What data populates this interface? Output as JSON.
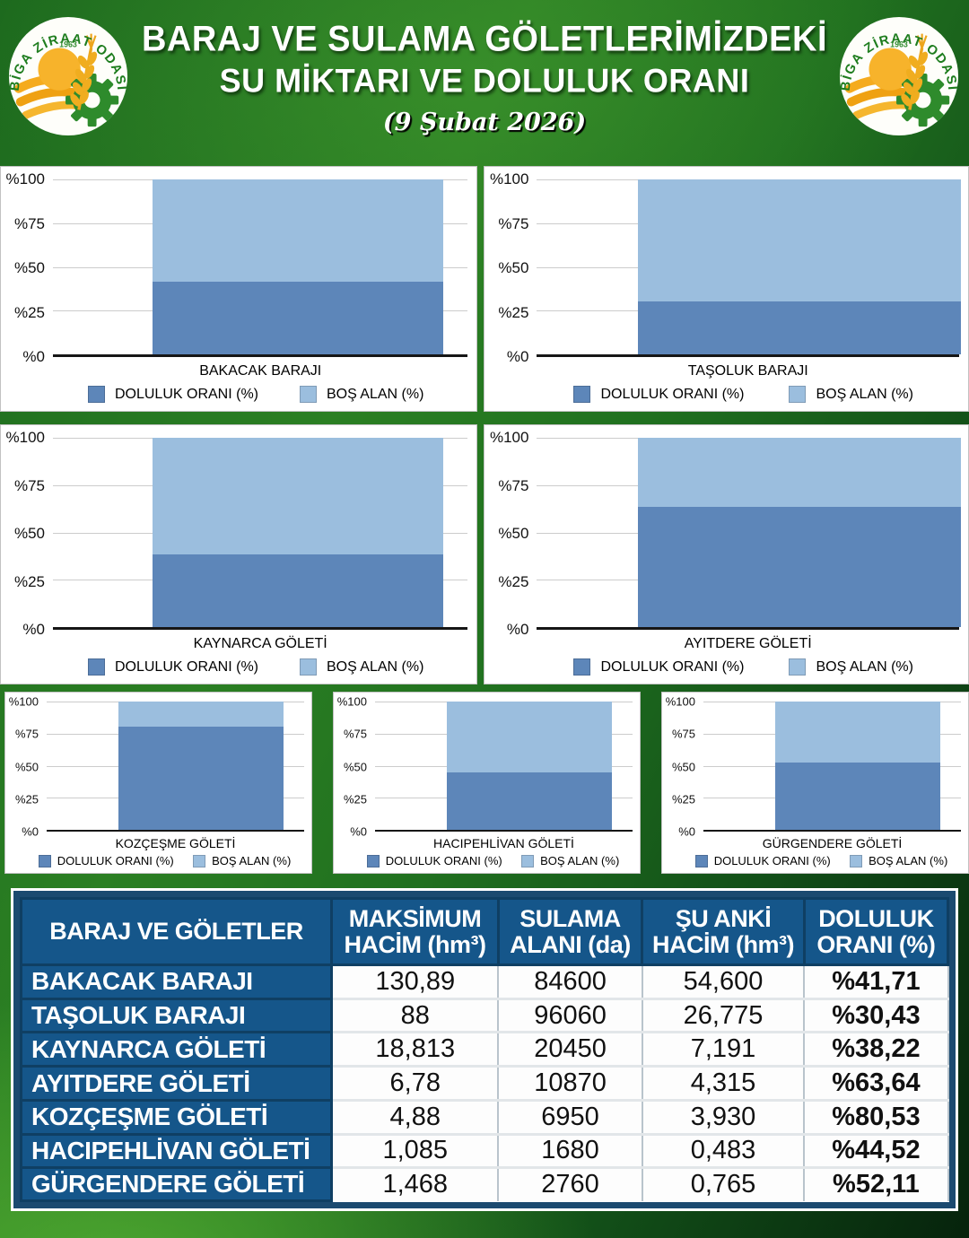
{
  "header": {
    "title_line1": "BARAJ VE SULAMA GÖLETLERİMİZDEKİ",
    "title_line2": "SU MİKTARI VE DOLULUK ORANI",
    "date": "(9 Şubat 2026)",
    "logo": {
      "name": "BİGA ZİRAAT ODASI",
      "year": "1963"
    }
  },
  "colors": {
    "bar_fill": "#5d86b9",
    "bar_empty": "#9bbede",
    "table_navy": "#15568a",
    "table_navy_border": "#0f3f63",
    "panel_bg": "#ffffff",
    "background_green": "#2b7f23",
    "title_text": "#ffffff"
  },
  "legend": {
    "filled": "DOLULUK ORANI (%)",
    "empty": "BOŞ ALAN (%)"
  },
  "chart_data": [
    {
      "type": "bar",
      "stacked": true,
      "row": 1,
      "flush_right": false,
      "title": "BAKACAK BARAJI",
      "ylim": [
        0,
        100
      ],
      "yticks": [
        "%100",
        "%75",
        "%50",
        "%25",
        "%0"
      ],
      "grid": true,
      "legend_position": "bottom",
      "series": [
        {
          "name": "DOLULUK ORANI (%)",
          "value": 41.71
        },
        {
          "name": "BOŞ ALAN (%)",
          "value": 58.29
        }
      ]
    },
    {
      "type": "bar",
      "stacked": true,
      "row": 1,
      "flush_right": true,
      "title": "TAŞOLUK BARAJI",
      "ylim": [
        0,
        100
      ],
      "yticks": [
        "%100",
        "%75",
        "%50",
        "%25",
        "%0"
      ],
      "grid": true,
      "legend_position": "bottom",
      "series": [
        {
          "name": "DOLULUK ORANI (%)",
          "value": 30.43
        },
        {
          "name": "BOŞ ALAN (%)",
          "value": 69.57
        }
      ]
    },
    {
      "type": "bar",
      "stacked": true,
      "row": 2,
      "flush_right": false,
      "title": "KAYNARCA GÖLETİ",
      "ylim": [
        0,
        100
      ],
      "yticks": [
        "%100",
        "%75",
        "%50",
        "%25",
        "%0"
      ],
      "grid": true,
      "legend_position": "bottom",
      "series": [
        {
          "name": "DOLULUK ORANI (%)",
          "value": 38.22
        },
        {
          "name": "BOŞ ALAN (%)",
          "value": 61.78
        }
      ]
    },
    {
      "type": "bar",
      "stacked": true,
      "row": 2,
      "flush_right": true,
      "title": "AYITDERE GÖLETİ",
      "ylim": [
        0,
        100
      ],
      "yticks": [
        "%100",
        "%75",
        "%50",
        "%25",
        "%0"
      ],
      "grid": true,
      "legend_position": "bottom",
      "series": [
        {
          "name": "DOLULUK ORANI (%)",
          "value": 63.64
        },
        {
          "name": "BOŞ ALAN (%)",
          "value": 36.36
        }
      ]
    },
    {
      "type": "bar",
      "stacked": true,
      "row": 3,
      "flush_right": false,
      "title": "KOZÇEŞME GÖLETİ",
      "ylim": [
        0,
        100
      ],
      "yticks": [
        "%100",
        "%75",
        "%50",
        "%25",
        "%0"
      ],
      "grid": true,
      "legend_position": "bottom",
      "series": [
        {
          "name": "DOLULUK ORANI (%)",
          "value": 80.53
        },
        {
          "name": "BOŞ ALAN (%)",
          "value": 19.47
        }
      ]
    },
    {
      "type": "bar",
      "stacked": true,
      "row": 3,
      "flush_right": false,
      "title": "HACIPEHLİVAN GÖLETİ",
      "ylim": [
        0,
        100
      ],
      "yticks": [
        "%100",
        "%75",
        "%50",
        "%25",
        "%0"
      ],
      "grid": true,
      "legend_position": "bottom",
      "series": [
        {
          "name": "DOLULUK ORANI (%)",
          "value": 44.52
        },
        {
          "name": "BOŞ ALAN (%)",
          "value": 55.48
        }
      ]
    },
    {
      "type": "bar",
      "stacked": true,
      "row": 3,
      "flush_right": false,
      "title": "GÜRGENDERE GÖLETİ",
      "ylim": [
        0,
        100
      ],
      "yticks": [
        "%100",
        "%75",
        "%50",
        "%25",
        "%0"
      ],
      "grid": true,
      "legend_position": "bottom",
      "series": [
        {
          "name": "DOLULUK ORANI (%)",
          "value": 52.11
        },
        {
          "name": "BOŞ ALAN (%)",
          "value": 47.89
        }
      ]
    }
  ],
  "table": {
    "columns": [
      "BARAJ VE GÖLETLER",
      "MAKSİMUM HACİM (hm³)",
      "SULAMA ALANI (da)",
      "ŞU ANKİ HACİM (hm³)",
      "DOLULUK ORANI (%)"
    ],
    "rows": [
      {
        "name": "BAKACAK BARAJI",
        "max_hacim": "130,89",
        "sulama_alani": "84600",
        "su_anki_hacim": "54,600",
        "doluluk": "%41,71"
      },
      {
        "name": "TAŞOLUK BARAJI",
        "max_hacim": "88",
        "sulama_alani": "96060",
        "su_anki_hacim": "26,775",
        "doluluk": "%30,43"
      },
      {
        "name": "KAYNARCA GÖLETİ",
        "max_hacim": "18,813",
        "sulama_alani": "20450",
        "su_anki_hacim": "7,191",
        "doluluk": "%38,22"
      },
      {
        "name": "AYITDERE GÖLETİ",
        "max_hacim": "6,78",
        "sulama_alani": "10870",
        "su_anki_hacim": "4,315",
        "doluluk": "%63,64"
      },
      {
        "name": "KOZÇEŞME GÖLETİ",
        "max_hacim": "4,88",
        "sulama_alani": "6950",
        "su_anki_hacim": "3,930",
        "doluluk": "%80,53"
      },
      {
        "name": "HACIPEHLİVAN GÖLETİ",
        "max_hacim": "1,085",
        "sulama_alani": "1680",
        "su_anki_hacim": "0,483",
        "doluluk": "%44,52"
      },
      {
        "name": "GÜRGENDERE GÖLETİ",
        "max_hacim": "1,468",
        "sulama_alani": "2760",
        "su_anki_hacim": "0,765",
        "doluluk": "%52,11"
      }
    ]
  }
}
